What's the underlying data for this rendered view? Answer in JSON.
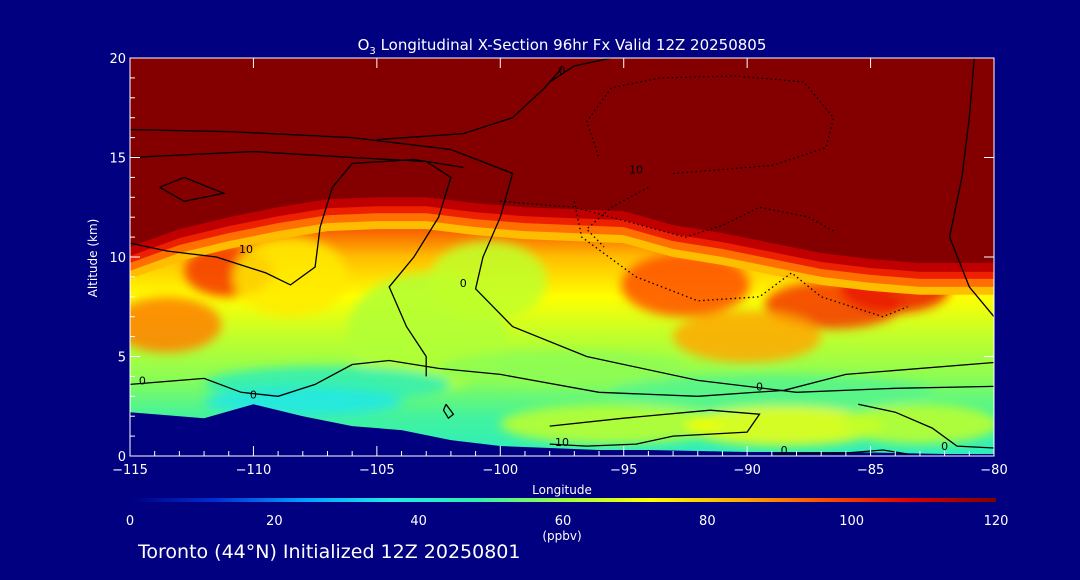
{
  "chart_data": {
    "type": "heatmap",
    "title": {
      "species": "O",
      "subscript": "3",
      "rest": " Longitudinal X-Section 96hr  Fx Valid 12Z 20250805"
    },
    "xlabel": "Longitude",
    "ylabel": "Altitude (km)",
    "xlim": [
      -115,
      -80
    ],
    "ylim": [
      0,
      20
    ],
    "x_ticks": [
      -115,
      -110,
      -105,
      -100,
      -95,
      -90,
      -85,
      -80
    ],
    "x_tick_labels": [
      "−115",
      "−110",
      "−105",
      "−100",
      "−95",
      "−90",
      "−85",
      "−80"
    ],
    "y_ticks": [
      0,
      5,
      10,
      15,
      20
    ],
    "y_tick_labels": [
      "0",
      "5",
      "10",
      "15",
      "20"
    ],
    "grid": false,
    "field": "ozone mixing ratio",
    "colorbar": {
      "min": 0,
      "max": 120,
      "ticks": [
        0,
        20,
        40,
        60,
        80,
        100,
        120
      ],
      "tick_labels": [
        "0",
        "20",
        "40",
        "60",
        "80",
        "100",
        "120"
      ],
      "units_label": "(ppbv)",
      "colors": [
        "#000080",
        "#0030d0",
        "#00a0ff",
        "#20e8e8",
        "#30f0b0",
        "#a0ff40",
        "#ffff00",
        "#ffb000",
        "#ff5000",
        "#e00000",
        "#800000"
      ]
    },
    "tropopause_height_km": {
      "lon": [
        -115,
        -113,
        -111,
        -109,
        -107,
        -105,
        -103,
        -101,
        -99,
        -97,
        -95,
        -93,
        -91,
        -89,
        -87,
        -85,
        -83,
        -81,
        -80
      ],
      "alt": [
        10.5,
        11.4,
        12.0,
        12.5,
        12.9,
        13.0,
        13.0,
        12.7,
        12.5,
        12.4,
        12.3,
        11.6,
        11.2,
        10.7,
        10.2,
        9.9,
        9.7,
        9.7,
        9.7
      ]
    },
    "terrain_height_km": {
      "lon": [
        -115,
        -112,
        -110,
        -108,
        -106,
        -104,
        -102,
        -100,
        -98,
        -96,
        -94,
        -92,
        -90,
        -88,
        -86,
        -84,
        -82,
        -80
      ],
      "alt": [
        2.2,
        1.9,
        2.6,
        2.0,
        1.5,
        1.3,
        0.8,
        0.5,
        0.4,
        0.3,
        0.3,
        0.25,
        0.2,
        0.2,
        0.2,
        0.15,
        0.1,
        0.1
      ]
    },
    "contour_labels": [
      {
        "text": "0",
        "lon": -97.5,
        "alt": 19.2
      },
      {
        "text": "10",
        "lon": -110.3,
        "alt": 10.2
      },
      {
        "text": "10",
        "lon": -94.5,
        "alt": 14.2
      },
      {
        "text": "0",
        "lon": -101.5,
        "alt": 8.5
      },
      {
        "text": "0",
        "lon": -114.5,
        "alt": 3.6
      },
      {
        "text": "0",
        "lon": -110,
        "alt": 2.9
      },
      {
        "text": "0",
        "lon": -89.5,
        "alt": 3.3
      },
      {
        "text": "10",
        "lon": -97.5,
        "alt": 0.5
      },
      {
        "text": "0",
        "lon": -88.5,
        "alt": 0.1
      },
      {
        "text": "0",
        "lon": -82,
        "alt": 0.3
      }
    ]
  },
  "footer": {
    "caption": "Toronto (44°N) Initialized 12Z 20250801"
  }
}
